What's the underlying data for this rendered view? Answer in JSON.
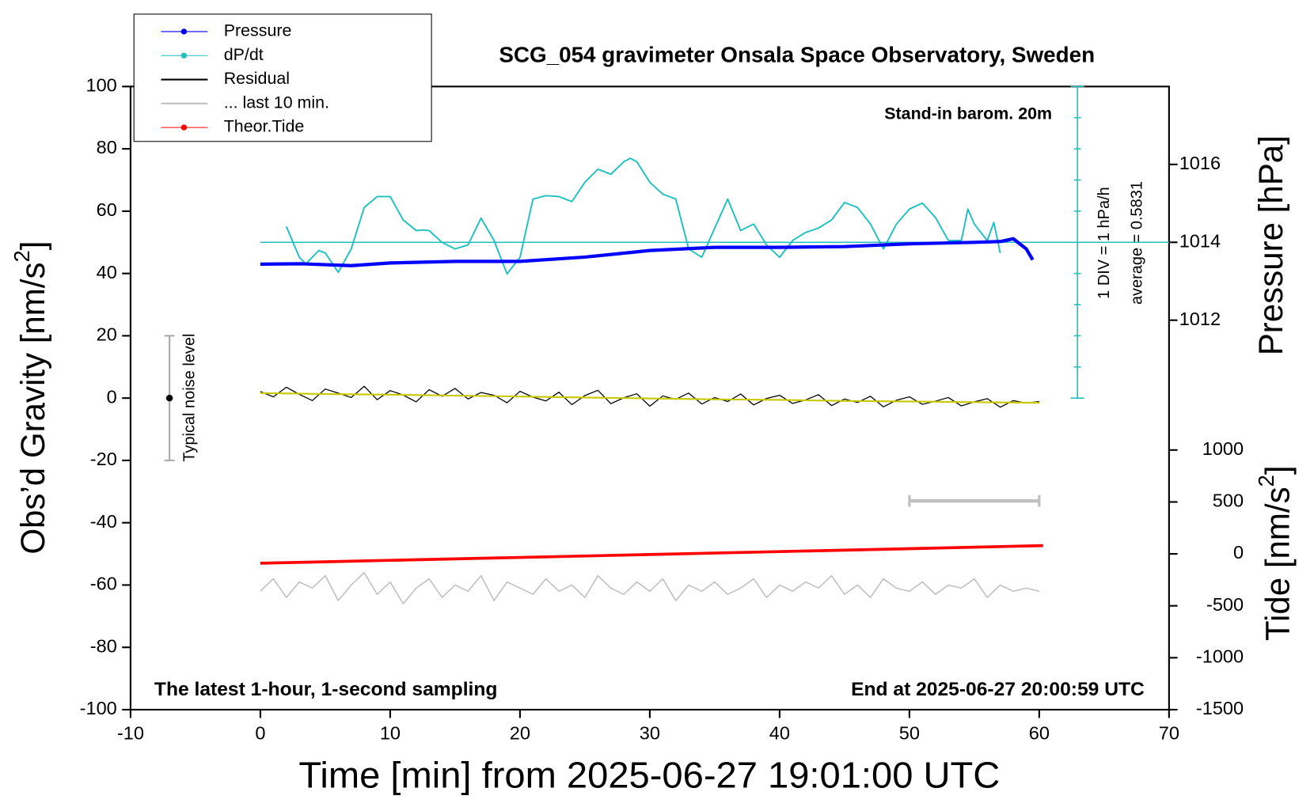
{
  "chart_data": {
    "type": "line",
    "title": "SCG_054 gravimeter Onsala Space Observatory, Sweden",
    "subtitle": "Stand-in barom. 20m",
    "note_left": "The latest 1-hour, 1-second sampling",
    "note_right": "End at 2025-06-27 20:00:59 UTC",
    "x_label": "Time [min] from 2025-06-27 19:01:00 UTC",
    "y_label": [
      "Obs’d Gravity [nm/s",
      "2",
      "]"
    ],
    "y2_label": "Pressure [hPa]",
    "y3_label": [
      "Tide [nm/s",
      "2",
      "]"
    ],
    "dpdt_scale_label": "1 DIV = 1 hPa/h",
    "average": {
      "value": 0.5831,
      "label": "average = 0.5831"
    },
    "xlim": [
      -10,
      70
    ],
    "xticks": [
      -10,
      0,
      10,
      20,
      30,
      40,
      50,
      60,
      70
    ],
    "ylim": [
      -100,
      100
    ],
    "yticks": [
      -100,
      -80,
      -60,
      -40,
      -20,
      0,
      20,
      40,
      60,
      80,
      100
    ],
    "y2lim": [
      1002,
      1018
    ],
    "y2ticks": [
      1012,
      1014,
      1016
    ],
    "y3lim": [
      -1500,
      4500
    ],
    "y3ticks": [
      -1500,
      -1000,
      -500,
      0,
      500,
      1000
    ],
    "y4lim": [
      -14.4169,
      5.5831
    ],
    "y4ticks": [
      -4.4169,
      -3.4169,
      -2.4169,
      -1.4169,
      -0.4169,
      0.5831,
      1.5831,
      2.5831,
      3.5831,
      4.5831,
      5.5831
    ],
    "noise_bar": {
      "x": -7,
      "values": [
        -20,
        0,
        20
      ],
      "label": "Typical noise level"
    },
    "window_bar": {
      "x": [
        50,
        60
      ],
      "value": -33,
      "color": "#c0c0c0"
    },
    "series": [
      {
        "name": "Pressure",
        "color": "#0000ff",
        "axis": "y2",
        "marker": true,
        "width": 4,
        "x": [
          0,
          3,
          7,
          10,
          15,
          20,
          25,
          30,
          35,
          40,
          45,
          50,
          55,
          57,
          58,
          59,
          59.5
        ],
        "values": [
          1013.44,
          1013.45,
          1013.4,
          1013.47,
          1013.51,
          1013.51,
          1013.62,
          1013.79,
          1013.87,
          1013.87,
          1013.89,
          1013.96,
          1014.0,
          1014.02,
          1014.09,
          1013.83,
          1013.55
        ]
      },
      {
        "name": "dP/dt",
        "color": "#20c0c0",
        "axis": "y4",
        "marker": true,
        "width": 1.8,
        "x": [
          2,
          3,
          3.5,
          4.5,
          5,
          6,
          7,
          8,
          9,
          10,
          11,
          12,
          12.5,
          13,
          14,
          15,
          16,
          17,
          18,
          19,
          20,
          21,
          22,
          23,
          24,
          25,
          26,
          27,
          28,
          28.5,
          29,
          30,
          31,
          32,
          33,
          34,
          35,
          36,
          37,
          38,
          39,
          40,
          41,
          42,
          43,
          44,
          45,
          46,
          47,
          48,
          49,
          50,
          51,
          52,
          53,
          54,
          54.5,
          55,
          56,
          56.5,
          57
        ],
        "values": [
          1.09,
          0.1,
          -0.11,
          0.32,
          0.24,
          -0.38,
          0.37,
          1.7,
          2.05,
          2.05,
          1.3,
          0.96,
          0.98,
          0.96,
          0.58,
          0.37,
          0.5,
          1.36,
          0.64,
          -0.43,
          0.1,
          1.97,
          2.08,
          2.05,
          1.89,
          2.51,
          2.93,
          2.77,
          3.17,
          3.28,
          3.17,
          2.51,
          2.13,
          1.97,
          0.37,
          0.1,
          1.04,
          1.97,
          0.96,
          1.17,
          0.5,
          0.1,
          0.64,
          0.9,
          1.04,
          1.3,
          1.86,
          1.7,
          1.17,
          0.37,
          1.17,
          1.65,
          1.84,
          1.38,
          0.64,
          0.64,
          1.65,
          1.17,
          0.64,
          1.22,
          0.24
        ]
      },
      {
        "name": "Residual",
        "color": "#000000",
        "axis": "y",
        "marker": false,
        "width": 1.2,
        "x": [
          0,
          1,
          2,
          3,
          4,
          5,
          6,
          7,
          8,
          9,
          10,
          11,
          12,
          13,
          14,
          15,
          16,
          17,
          18,
          19,
          20,
          21,
          22,
          23,
          24,
          25,
          26,
          27,
          28,
          29,
          30,
          31,
          32,
          33,
          34,
          35,
          36,
          37,
          38,
          39,
          40,
          41,
          42,
          43,
          44,
          45,
          46,
          47,
          48,
          49,
          50,
          51,
          52,
          53,
          54,
          55,
          56,
          57,
          58,
          59,
          60
        ],
        "values": [
          2.1,
          0.4,
          3.5,
          1.2,
          -0.8,
          2.9,
          1.6,
          0.2,
          3.8,
          -0.5,
          2.4,
          1.0,
          -1.2,
          2.7,
          0.6,
          3.1,
          -0.3,
          1.8,
          0.9,
          -1.5,
          2.2,
          0.3,
          -0.9,
          1.9,
          -2.1,
          0.8,
          2.5,
          -1.8,
          0.1,
          1.4,
          -2.6,
          0.7,
          -0.4,
          1.6,
          -1.9,
          0.2,
          -1.1,
          1.3,
          -2.2,
          -0.1,
          0.9,
          -1.7,
          -0.6,
          1.1,
          -2.4,
          -0.3,
          -1.4,
          0.6,
          -2.8,
          -0.7,
          0.4,
          -2.0,
          -1.0,
          0.2,
          -2.5,
          -1.2,
          -0.2,
          -2.9,
          -0.8,
          -1.6,
          -1.1
        ]
      },
      {
        "name": "... last 10 min.",
        "color": "#c0c0c0",
        "axis": "y",
        "marker": false,
        "width": 1.5,
        "x": [
          0,
          1,
          2,
          3,
          4,
          5,
          6,
          7,
          8,
          9,
          10,
          11,
          12,
          13,
          14,
          15,
          16,
          17,
          18,
          19,
          20,
          21,
          22,
          23,
          24,
          25,
          26,
          27,
          28,
          29,
          30,
          31,
          32,
          33,
          34,
          35,
          36,
          37,
          38,
          39,
          40,
          41,
          42,
          43,
          44,
          45,
          46,
          47,
          48,
          49,
          50,
          51,
          52,
          53,
          54,
          55,
          56,
          57,
          58,
          59,
          60
        ],
        "values": [
          -62,
          -58,
          -64,
          -59,
          -61,
          -57,
          -65,
          -60,
          -56,
          -63,
          -59,
          -66,
          -61,
          -58,
          -64,
          -60,
          -62,
          -57,
          -65,
          -59,
          -61,
          -63,
          -58,
          -62,
          -60,
          -64,
          -57,
          -61,
          -63,
          -59,
          -62,
          -58,
          -65,
          -60,
          -62,
          -59,
          -63,
          -61,
          -58,
          -64,
          -60,
          -62,
          -59,
          -61,
          -57,
          -63,
          -60,
          -64,
          -58,
          -61,
          -62,
          -59,
          -63,
          -60,
          -61,
          -58,
          -64,
          -60,
          -62,
          -61,
          -62
        ]
      },
      {
        "name": "Theor.Tide",
        "color": "#ff0000",
        "axis": "y3",
        "marker": true,
        "width": 3.5,
        "x": [
          0,
          10,
          20,
          30,
          40,
          50,
          60.3
        ],
        "values": [
          -90,
          -62,
          -34,
          -6,
          22,
          50,
          80
        ]
      },
      {
        "color": "#c8c800",
        "axis": "y",
        "marker": false,
        "width": 2,
        "x": [
          0,
          5,
          10,
          15,
          20,
          25,
          30,
          35,
          40,
          45,
          50,
          55,
          60
        ],
        "values": [
          1.6,
          1.3,
          1.1,
          0.8,
          0.5,
          0.2,
          -0.1,
          -0.4,
          -0.6,
          -0.9,
          -1.1,
          -1.3,
          -1.5
        ]
      }
    ]
  }
}
